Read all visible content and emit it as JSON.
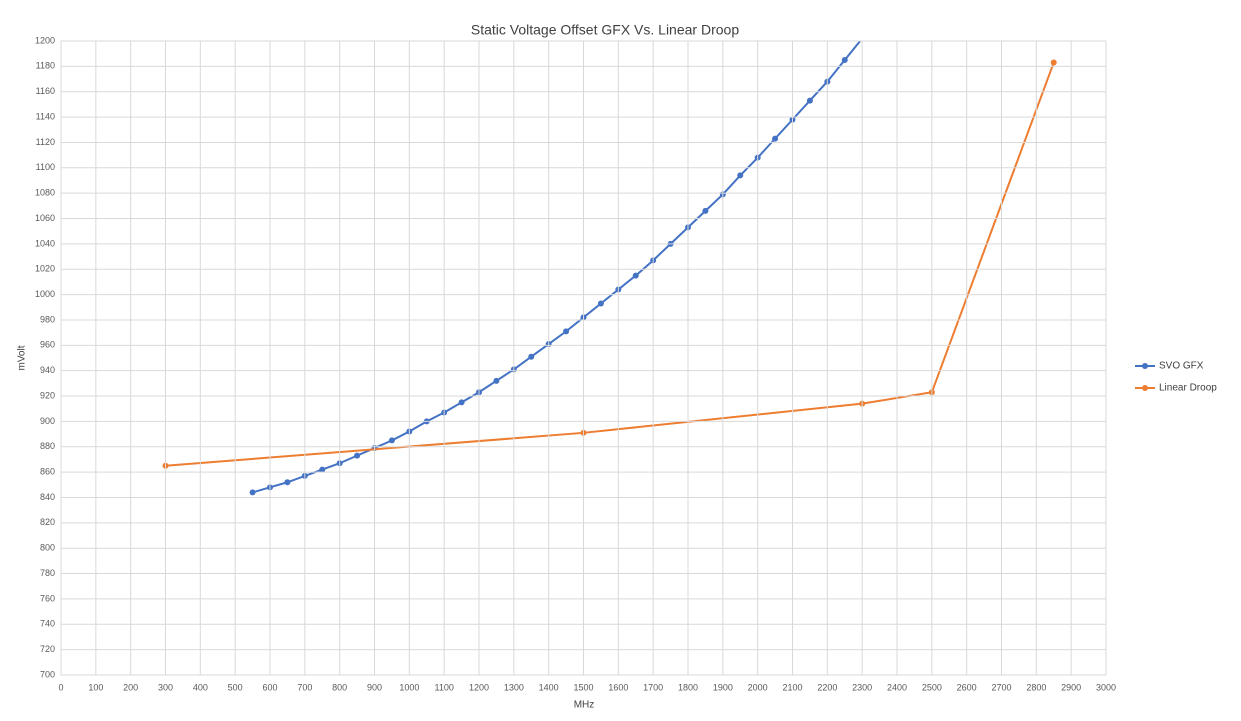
{
  "chart_data": {
    "type": "line",
    "title": "Static Voltage Offset GFX Vs. Linear Droop",
    "x_label": "MHz",
    "y_label": "mVolt",
    "xlim": [
      0,
      3000
    ],
    "xticks": [
      0,
      100,
      200,
      300,
      400,
      500,
      600,
      700,
      800,
      900,
      1000,
      1100,
      1200,
      1300,
      1400,
      1500,
      1600,
      1700,
      1800,
      1900,
      2000,
      2100,
      2200,
      2300,
      2400,
      2500,
      2600,
      2700,
      2800,
      2900,
      3000
    ],
    "ylim": [
      700,
      1200
    ],
    "yticks": [
      700,
      720,
      740,
      760,
      780,
      800,
      820,
      840,
      860,
      880,
      900,
      920,
      940,
      960,
      980,
      1000,
      1020,
      1040,
      1060,
      1080,
      1100,
      1120,
      1140,
      1160,
      1180,
      1200
    ],
    "grid": true,
    "legend": "right",
    "series": [
      {
        "name": "SVO GFX",
        "color": "#4472c4",
        "x": [
          550,
          600,
          650,
          700,
          750,
          800,
          850,
          900,
          950,
          1000,
          1050,
          1100,
          1150,
          1200,
          1250,
          1300,
          1350,
          1400,
          1450,
          1500,
          1550,
          1600,
          1650,
          1700,
          1750,
          1800,
          1850,
          1900,
          1950,
          2000,
          2050,
          2100,
          2150,
          2200,
          2250,
          2300
        ],
        "values": [
          844,
          848,
          852,
          857,
          862,
          867,
          873,
          879,
          885,
          892,
          900,
          907,
          915,
          923,
          932,
          941,
          951,
          961,
          971,
          982,
          993,
          1004,
          1015,
          1027,
          1040,
          1053,
          1066,
          1079,
          1094,
          1108,
          1123,
          1138,
          1153,
          1168,
          1185,
          1202
        ]
      },
      {
        "name": "Linear Droop",
        "color": "#ed7d31",
        "x": [
          300,
          1500,
          2300,
          2500,
          2850
        ],
        "values": [
          865,
          891,
          914,
          923,
          1183
        ]
      }
    ]
  }
}
